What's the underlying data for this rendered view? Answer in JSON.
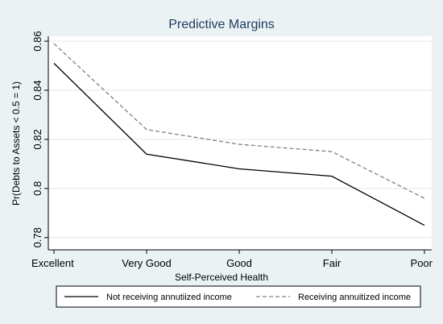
{
  "chart_data": {
    "type": "line",
    "title": "Predictive Margins",
    "xlabel": "Self-Perceived Health",
    "ylabel": "Pr(Debts to Assets < 0.5 = 1)",
    "categories": [
      "Excellent",
      "Very Good",
      "Good",
      "Fair",
      "Poor"
    ],
    "ylim": [
      0.775,
      0.862
    ],
    "yticks": [
      0.78,
      0.8,
      0.82,
      0.84,
      0.86
    ],
    "ytick_labels": [
      "0.78",
      "0.8",
      "0.82",
      "0.84",
      "0.86"
    ],
    "grid": "horizontal",
    "legend_position": "bottom",
    "series": [
      {
        "name": "Not receiving annutiized income",
        "values": [
          0.851,
          0.814,
          0.808,
          0.805,
          0.785
        ],
        "color": "#000000",
        "style": "solid"
      },
      {
        "name": "Receiving annuitized income",
        "values": [
          0.859,
          0.824,
          0.818,
          0.815,
          0.796
        ],
        "color": "#808080",
        "style": "dashed"
      }
    ]
  }
}
